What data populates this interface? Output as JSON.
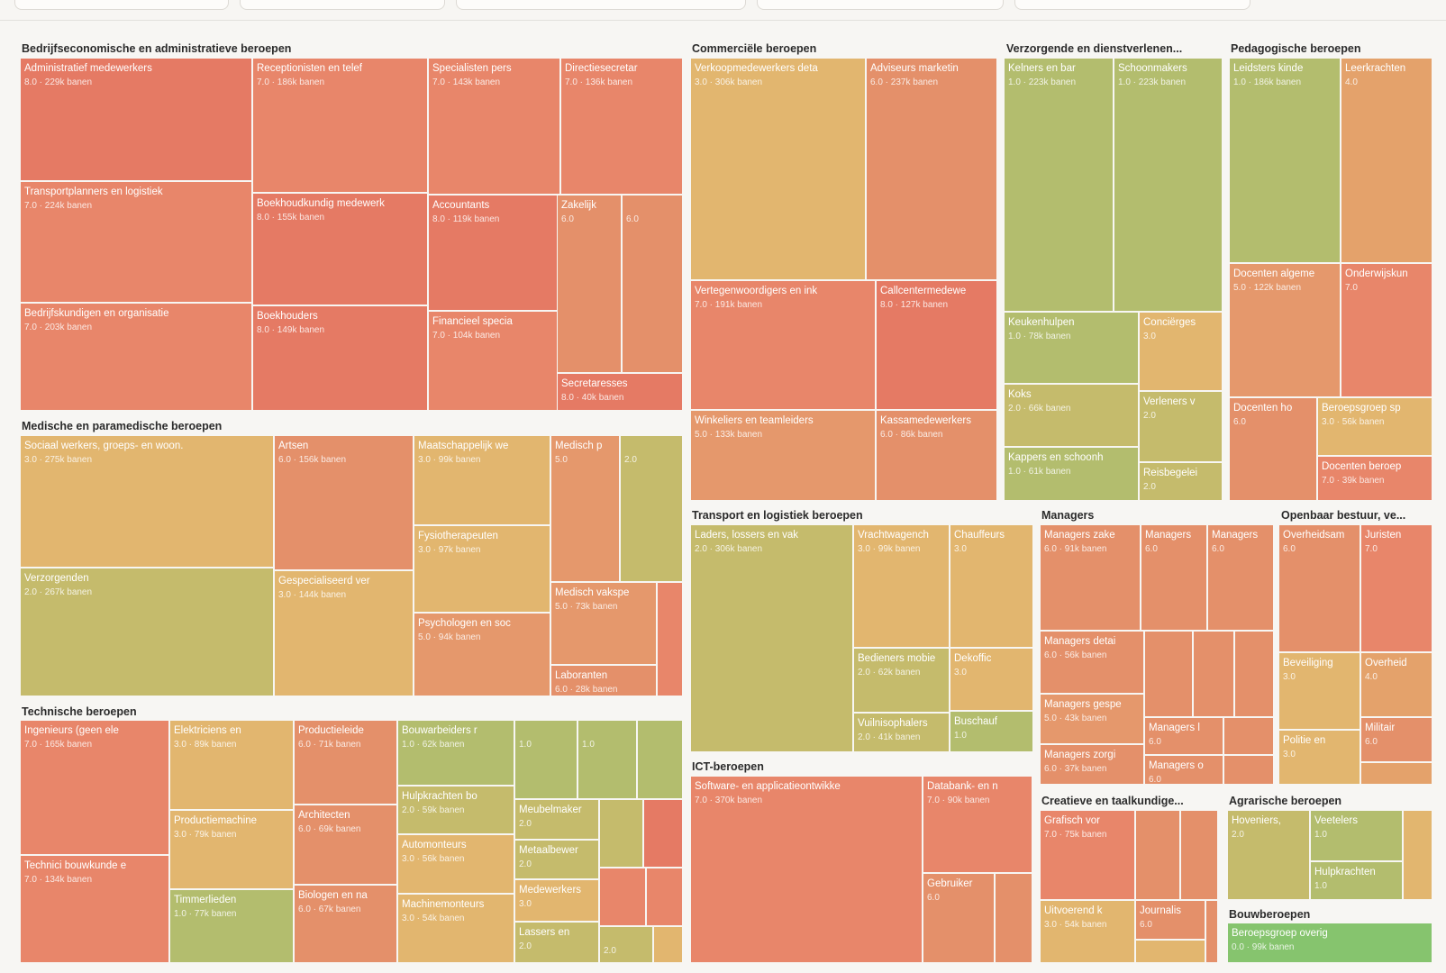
{
  "colors": {
    "1": "#b3bd6e",
    "2": "#c5bb6c",
    "3": "#e2b66f",
    "4": "#e4a26b",
    "5": "#e5986c",
    "6": "#e4906a",
    "7": "#e8866a",
    "8": "#e57a64",
    "0": "#86c46e"
  },
  "chart_data": {
    "type": "treemap",
    "value_unit": "banen",
    "groups": [
      {
        "name": "Bedrijfseconomische en administratieve beroepen",
        "items": [
          {
            "label": "Administratief medewerkers",
            "score": "8.0",
            "jobs": "229k",
            "ckey": "8"
          },
          {
            "label": "Transportplanners en logistiek",
            "score": "7.0",
            "jobs": "224k",
            "ckey": "7"
          },
          {
            "label": "Bedrijfskundigen en organisatie",
            "score": "7.0",
            "jobs": "203k",
            "ckey": "7"
          },
          {
            "label": "Receptionisten en telef",
            "score": "7.0",
            "jobs": "186k",
            "ckey": "7"
          },
          {
            "label": "Boekhoudkundig medewerk",
            "score": "8.0",
            "jobs": "155k",
            "ckey": "8"
          },
          {
            "label": "Boekhouders",
            "score": "8.0",
            "jobs": "149k",
            "ckey": "8"
          },
          {
            "label": "Specialisten pers",
            "score": "7.0",
            "jobs": "143k",
            "ckey": "7"
          },
          {
            "label": "Accountants",
            "score": "8.0",
            "jobs": "119k",
            "ckey": "8"
          },
          {
            "label": "Financieel specia",
            "score": "7.0",
            "jobs": "104k",
            "ckey": "7"
          },
          {
            "label": "Directiesecretar",
            "score": "7.0",
            "jobs": "136k",
            "ckey": "7"
          },
          {
            "label": "Zakelijk",
            "score": "6.0",
            "jobs": "",
            "ckey": "6"
          },
          {
            "label": "",
            "score": "6.0",
            "jobs": "",
            "ckey": "6"
          },
          {
            "label": "Secretaresses",
            "score": "8.0",
            "jobs": "40k",
            "ckey": "8"
          }
        ]
      },
      {
        "name": "Commerciële beroepen",
        "items": [
          {
            "label": "Verkoopmedewerkers deta",
            "score": "3.0",
            "jobs": "306k",
            "ckey": "3"
          },
          {
            "label": "Adviseurs marketin",
            "score": "6.0",
            "jobs": "237k",
            "ckey": "6"
          },
          {
            "label": "Vertegenwoordigers en ink",
            "score": "7.0",
            "jobs": "191k",
            "ckey": "7"
          },
          {
            "label": "Callcentermedewe",
            "score": "8.0",
            "jobs": "127k",
            "ckey": "8"
          },
          {
            "label": "Winkeliers en teamleiders",
            "score": "5.0",
            "jobs": "133k",
            "ckey": "5"
          },
          {
            "label": "Kassamedewerkers",
            "score": "6.0",
            "jobs": "86k",
            "ckey": "6"
          }
        ]
      },
      {
        "name": "Verzorgende en dienstverlenen...",
        "items": [
          {
            "label": "Kelners en bar",
            "score": "1.0",
            "jobs": "223k",
            "ckey": "1"
          },
          {
            "label": "Schoonmakers",
            "score": "1.0",
            "jobs": "223k",
            "ckey": "1"
          },
          {
            "label": "Keukenhulpen",
            "score": "1.0",
            "jobs": "78k",
            "ckey": "1"
          },
          {
            "label": "Conciërges",
            "score": "3.0",
            "jobs": "",
            "ckey": "3"
          },
          {
            "label": "Koks",
            "score": "2.0",
            "jobs": "66k",
            "ckey": "2"
          },
          {
            "label": "Verleners v",
            "score": "2.0",
            "jobs": "",
            "ckey": "2"
          },
          {
            "label": "Kappers en schoonh",
            "score": "1.0",
            "jobs": "61k",
            "ckey": "1"
          },
          {
            "label": "Reisbegelei",
            "score": "2.0",
            "jobs": "",
            "ckey": "2"
          }
        ]
      },
      {
        "name": "Pedagogische beroepen",
        "items": [
          {
            "label": "Leidsters kinde",
            "score": "1.0",
            "jobs": "186k",
            "ckey": "1"
          },
          {
            "label": "Leerkrachten",
            "score": "4.0",
            "jobs": "",
            "ckey": "4"
          },
          {
            "label": "Docenten algeme",
            "score": "5.0",
            "jobs": "122k",
            "ckey": "5"
          },
          {
            "label": "Onderwijskun",
            "score": "7.0",
            "jobs": "",
            "ckey": "7"
          },
          {
            "label": "Docenten ho",
            "score": "6.0",
            "jobs": "",
            "ckey": "6"
          },
          {
            "label": "Beroepsgroep sp",
            "score": "3.0",
            "jobs": "56k",
            "ckey": "3"
          },
          {
            "label": "Docenten beroep",
            "score": "7.0",
            "jobs": "39k",
            "ckey": "7"
          }
        ]
      },
      {
        "name": "Medische en paramedische beroepen",
        "items": [
          {
            "label": "Sociaal werkers, groeps- en woon.",
            "score": "3.0",
            "jobs": "275k",
            "ckey": "3"
          },
          {
            "label": "Verzorgenden",
            "score": "2.0",
            "jobs": "267k",
            "ckey": "2"
          },
          {
            "label": "Artsen",
            "score": "6.0",
            "jobs": "156k",
            "ckey": "6"
          },
          {
            "label": "Gespecialiseerd ver",
            "score": "3.0",
            "jobs": "144k",
            "ckey": "3"
          },
          {
            "label": "Maatschappelijk we",
            "score": "3.0",
            "jobs": "99k",
            "ckey": "3"
          },
          {
            "label": "Fysiotherapeuten",
            "score": "3.0",
            "jobs": "97k",
            "ckey": "3"
          },
          {
            "label": "Psychologen en soc",
            "score": "5.0",
            "jobs": "94k",
            "ckey": "5"
          },
          {
            "label": "Medisch p",
            "score": "5.0",
            "jobs": "",
            "ckey": "5"
          },
          {
            "label": "",
            "score": "2.0",
            "jobs": "",
            "ckey": "2"
          },
          {
            "label": "Medisch vakspe",
            "score": "5.0",
            "jobs": "73k",
            "ckey": "5"
          },
          {
            "label": "Laboranten",
            "score": "6.0",
            "jobs": "28k",
            "ckey": "6"
          },
          {
            "label": "",
            "score": "",
            "jobs": "",
            "ckey": "7"
          }
        ]
      },
      {
        "name": "Transport en logistiek beroepen",
        "items": [
          {
            "label": "Laders, lossers en vak",
            "score": "2.0",
            "jobs": "306k",
            "ckey": "2"
          },
          {
            "label": "Vrachtwagench",
            "score": "3.0",
            "jobs": "99k",
            "ckey": "3"
          },
          {
            "label": "Chauffeurs",
            "score": "3.0",
            "jobs": "",
            "ckey": "3"
          },
          {
            "label": "Bedieners mobie",
            "score": "2.0",
            "jobs": "62k",
            "ckey": "2"
          },
          {
            "label": "Dekoffic",
            "score": "3.0",
            "jobs": "",
            "ckey": "3"
          },
          {
            "label": "Vuilnisophalers",
            "score": "2.0",
            "jobs": "41k",
            "ckey": "2"
          },
          {
            "label": "Buschauf",
            "score": "1.0",
            "jobs": "",
            "ckey": "1"
          }
        ]
      },
      {
        "name": "Managers",
        "items": [
          {
            "label": "Managers zake",
            "score": "6.0",
            "jobs": "91k",
            "ckey": "6"
          },
          {
            "label": "Managers",
            "score": "6.0",
            "jobs": "",
            "ckey": "6"
          },
          {
            "label": "Managers",
            "score": "6.0",
            "jobs": "",
            "ckey": "6"
          },
          {
            "label": "Managers detai",
            "score": "6.0",
            "jobs": "56k",
            "ckey": "6"
          },
          {
            "label": "",
            "score": "",
            "jobs": "",
            "ckey": "6"
          },
          {
            "label": "",
            "score": "",
            "jobs": "",
            "ckey": "6"
          },
          {
            "label": "",
            "score": "",
            "jobs": "",
            "ckey": "6"
          },
          {
            "label": "Managers gespe",
            "score": "5.0",
            "jobs": "43k",
            "ckey": "5"
          },
          {
            "label": "Managers l",
            "score": "6.0",
            "jobs": "",
            "ckey": "6"
          },
          {
            "label": "",
            "score": "",
            "jobs": "",
            "ckey": "6"
          },
          {
            "label": "Managers zorgi",
            "score": "6.0",
            "jobs": "37k",
            "ckey": "6"
          },
          {
            "label": "Managers o",
            "score": "6.0",
            "jobs": "",
            "ckey": "6"
          },
          {
            "label": "",
            "score": "",
            "jobs": "",
            "ckey": "6"
          }
        ]
      },
      {
        "name": "Openbaar bestuur, ve...",
        "items": [
          {
            "label": "Overheidsam",
            "score": "6.0",
            "jobs": "",
            "ckey": "6"
          },
          {
            "label": "Juristen",
            "score": "7.0",
            "jobs": "",
            "ckey": "7"
          },
          {
            "label": "Beveiliging",
            "score": "3.0",
            "jobs": "",
            "ckey": "3"
          },
          {
            "label": "Overheid",
            "score": "4.0",
            "jobs": "",
            "ckey": "4"
          },
          {
            "label": "Politie en",
            "score": "3.0",
            "jobs": "",
            "ckey": "3"
          },
          {
            "label": "Militair",
            "score": "6.0",
            "jobs": "",
            "ckey": "6"
          },
          {
            "label": "",
            "score": "",
            "jobs": "",
            "ckey": "4"
          }
        ]
      },
      {
        "name": "Technische beroepen",
        "items": [
          {
            "label": "Ingenieurs (geen ele",
            "score": "7.0",
            "jobs": "165k",
            "ckey": "7"
          },
          {
            "label": "Technici bouwkunde e",
            "score": "7.0",
            "jobs": "134k",
            "ckey": "7"
          },
          {
            "label": "Elektriciens en",
            "score": "3.0",
            "jobs": "89k",
            "ckey": "3"
          },
          {
            "label": "Productiemachine",
            "score": "3.0",
            "jobs": "79k",
            "ckey": "3"
          },
          {
            "label": "Timmerlieden",
            "score": "1.0",
            "jobs": "77k",
            "ckey": "1"
          },
          {
            "label": "Productieleide",
            "score": "6.0",
            "jobs": "71k",
            "ckey": "6"
          },
          {
            "label": "Architecten",
            "score": "6.0",
            "jobs": "69k",
            "ckey": "6"
          },
          {
            "label": "Biologen en na",
            "score": "6.0",
            "jobs": "67k",
            "ckey": "6"
          },
          {
            "label": "Bouwarbeiders r",
            "score": "1.0",
            "jobs": "62k",
            "ckey": "1"
          },
          {
            "label": "Hulpkrachten bo",
            "score": "2.0",
            "jobs": "59k",
            "ckey": "2"
          },
          {
            "label": "Automonteurs",
            "score": "3.0",
            "jobs": "56k",
            "ckey": "3"
          },
          {
            "label": "Machinemonteurs",
            "score": "3.0",
            "jobs": "54k",
            "ckey": "3"
          },
          {
            "label": "",
            "score": "1.0",
            "jobs": "",
            "ckey": "1"
          },
          {
            "label": "",
            "score": "1.0",
            "jobs": "",
            "ckey": "1"
          },
          {
            "label": "",
            "score": "",
            "jobs": "",
            "ckey": "1"
          },
          {
            "label": "Meubelmaker",
            "score": "2.0",
            "jobs": "",
            "ckey": "2"
          },
          {
            "label": "Metaalbewer",
            "score": "2.0",
            "jobs": "",
            "ckey": "2"
          },
          {
            "label": "Medewerkers",
            "score": "3.0",
            "jobs": "",
            "ckey": "3"
          },
          {
            "label": "Lassers en",
            "score": "2.0",
            "jobs": "",
            "ckey": "2"
          },
          {
            "label": "",
            "score": "",
            "jobs": "",
            "ckey": "2"
          },
          {
            "label": "",
            "score": "",
            "jobs": "",
            "ckey": "8"
          },
          {
            "label": "",
            "score": "",
            "jobs": "",
            "ckey": "7"
          },
          {
            "label": "",
            "score": "",
            "jobs": "",
            "ckey": "7"
          },
          {
            "label": "",
            "score": "2.0",
            "jobs": "",
            "ckey": "2"
          },
          {
            "label": "",
            "score": "",
            "jobs": "",
            "ckey": "3"
          }
        ]
      },
      {
        "name": "ICT-beroepen",
        "items": [
          {
            "label": "Software- en applicatieontwikke",
            "score": "7.0",
            "jobs": "370k",
            "ckey": "7"
          },
          {
            "label": "Databank- en n",
            "score": "7.0",
            "jobs": "90k",
            "ckey": "7"
          },
          {
            "label": "Gebruiker",
            "score": "6.0",
            "jobs": "",
            "ckey": "6"
          },
          {
            "label": "",
            "score": "",
            "jobs": "",
            "ckey": "6"
          }
        ]
      },
      {
        "name": "Creatieve en taalkundige...",
        "items": [
          {
            "label": "Grafisch vor",
            "score": "7.0",
            "jobs": "75k",
            "ckey": "7"
          },
          {
            "label": "",
            "score": "",
            "jobs": "",
            "ckey": "6"
          },
          {
            "label": "",
            "score": "",
            "jobs": "",
            "ckey": "6"
          },
          {
            "label": "Uitvoerend k",
            "score": "3.0",
            "jobs": "54k",
            "ckey": "3"
          },
          {
            "label": "Journalis",
            "score": "6.0",
            "jobs": "",
            "ckey": "6"
          },
          {
            "label": "",
            "score": "",
            "jobs": "",
            "ckey": "3"
          },
          {
            "label": "",
            "score": "",
            "jobs": "",
            "ckey": "6"
          }
        ]
      },
      {
        "name": "Agrarische beroepen",
        "items": [
          {
            "label": "Hoveniers,",
            "score": "2.0",
            "jobs": "",
            "ckey": "2"
          },
          {
            "label": "Veetelers",
            "score": "1.0",
            "jobs": "",
            "ckey": "1"
          },
          {
            "label": "Hulpkrachten",
            "score": "1.0",
            "jobs": "",
            "ckey": "1"
          },
          {
            "label": "",
            "score": "",
            "jobs": "",
            "ckey": "3"
          }
        ]
      },
      {
        "name": "Bouwberoepen",
        "items": [
          {
            "label": "Beroepsgroep overig",
            "score": "0.0",
            "jobs": "99k",
            "ckey": "0"
          }
        ]
      }
    ]
  }
}
